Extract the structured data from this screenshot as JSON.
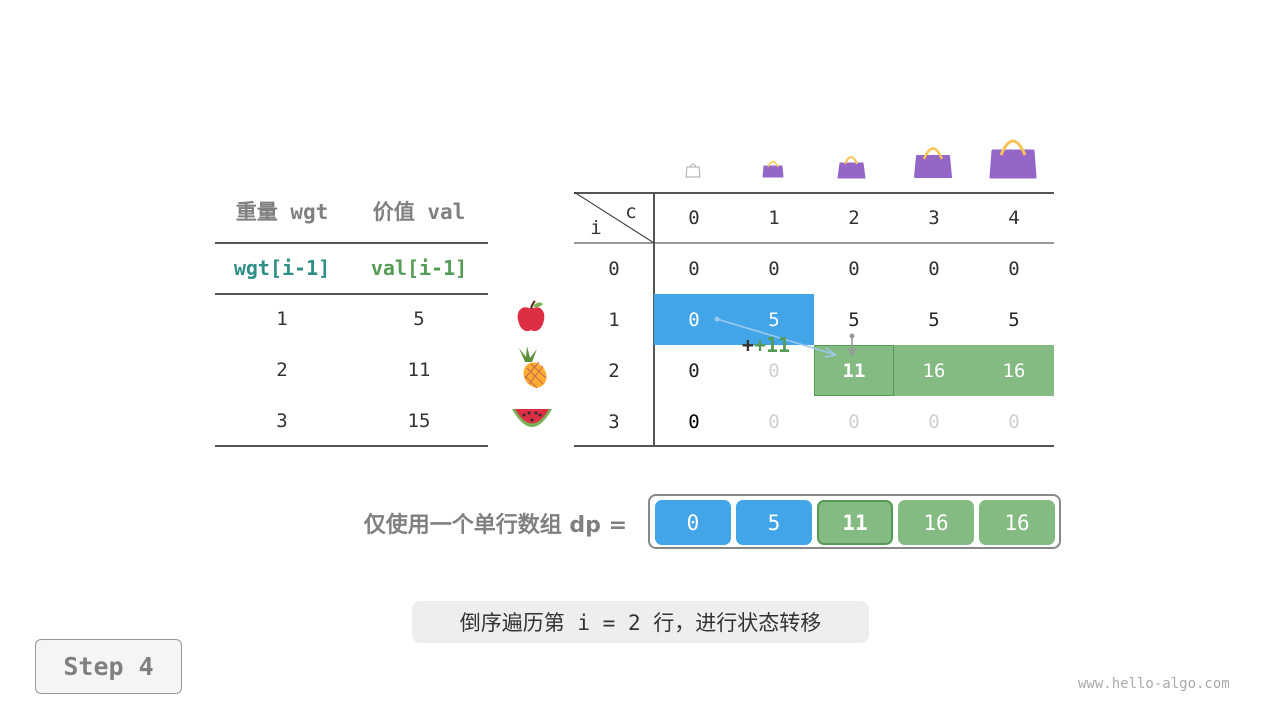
{
  "left_table": {
    "headers": [
      "重量 wgt",
      "价值 val"
    ],
    "subheaders": [
      "wgt[i-1]",
      "val[i-1]"
    ],
    "rows": [
      [
        "1",
        "5"
      ],
      [
        "2",
        "11"
      ],
      [
        "3",
        "15"
      ]
    ],
    "items": [
      "apple-icon",
      "pineapple-icon",
      "watermelon-icon"
    ]
  },
  "dp_table": {
    "corner_row_label": "i",
    "corner_col_label": "c",
    "col_headers": [
      "0",
      "1",
      "2",
      "3",
      "4"
    ],
    "row_headers": [
      "0",
      "1",
      "2",
      "3"
    ],
    "rows": [
      [
        "0",
        "0",
        "0",
        "0",
        "0"
      ],
      [
        "0",
        "5",
        "5",
        "5",
        "5"
      ],
      [
        "0",
        "0",
        "11",
        "16",
        "16"
      ],
      [
        "0",
        "0",
        "0",
        "0",
        "0"
      ]
    ],
    "annotation": "+11",
    "capacity_icons": [
      "empty-bag-icon",
      "bag-icon",
      "bag-icon",
      "bag-icon",
      "bag-icon"
    ]
  },
  "dp_array": {
    "label": "仅使用一个单行数组 dp =",
    "values": [
      "0",
      "5",
      "11",
      "16",
      "16"
    ]
  },
  "caption": "倒序遍历第 i = 2 行，进行状态转移",
  "step_button": "Step 4",
  "watermark": "www.hello-algo.com",
  "colors": {
    "blue": "#42a5e8",
    "green": "#83bb82",
    "green_dark": "#569b55",
    "teal": "#2f8f86",
    "label_gray": "#808080",
    "faded": "#d0d0d0",
    "bag": "#9366c8",
    "handle": "#f8c254"
  }
}
